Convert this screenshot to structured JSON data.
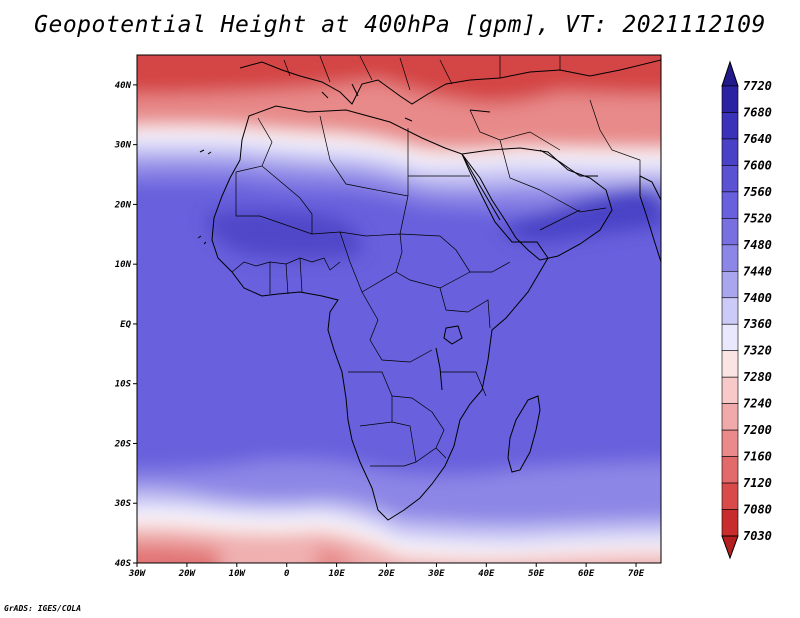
{
  "title": "Geopotential Height at 400hPa [gpm], VT: 2021112109",
  "footer": "GrADS: IGES/COLA",
  "map": {
    "projection": "latlon",
    "lon_range": [
      -30,
      75
    ],
    "lat_range": [
      -40,
      45
    ],
    "x_ticks": [
      {
        "lon": -30,
        "label": "30W"
      },
      {
        "lon": -20,
        "label": "20W"
      },
      {
        "lon": -10,
        "label": "10W"
      },
      {
        "lon": 0,
        "label": "0"
      },
      {
        "lon": 10,
        "label": "10E"
      },
      {
        "lon": 20,
        "label": "20E"
      },
      {
        "lon": 30,
        "label": "30E"
      },
      {
        "lon": 40,
        "label": "40E"
      },
      {
        "lon": 50,
        "label": "50E"
      },
      {
        "lon": 60,
        "label": "60E"
      },
      {
        "lon": 70,
        "label": "70E"
      }
    ],
    "y_ticks": [
      {
        "lat": 40,
        "label": "40N"
      },
      {
        "lat": 30,
        "label": "30N"
      },
      {
        "lat": 20,
        "label": "20N"
      },
      {
        "lat": 10,
        "label": "10N"
      },
      {
        "lat": 0,
        "label": "EQ"
      },
      {
        "lat": -10,
        "label": "10S"
      },
      {
        "lat": -20,
        "label": "20S"
      },
      {
        "lat": -30,
        "label": "30S"
      },
      {
        "lat": -40,
        "label": "40S"
      }
    ],
    "field": {
      "variable": "Geopotential Height",
      "level": "400hPa",
      "units": "gpm",
      "approx_min": 7060,
      "approx_max": 7650
    }
  },
  "colorbar": {
    "orientation": "vertical",
    "labels": [
      "7720",
      "7680",
      "7640",
      "7600",
      "7560",
      "7520",
      "7480",
      "7440",
      "7400",
      "7360",
      "7320",
      "7280",
      "7240",
      "7200",
      "7160",
      "7120",
      "7080",
      "7030"
    ],
    "colors": [
      "#221a8c",
      "#2b22a3",
      "#3a32b8",
      "#4a42c6",
      "#5a52d2",
      "#6860dc",
      "#7870e0",
      "#8c86e6",
      "#aaa6ee",
      "#cccaf6",
      "#eae8fc",
      "#fbe4e4",
      "#f7c9c9",
      "#f1aaaa",
      "#ea8a8a",
      "#e26a6a",
      "#d94a4a",
      "#c92c2c",
      "#b51e1e"
    ]
  }
}
